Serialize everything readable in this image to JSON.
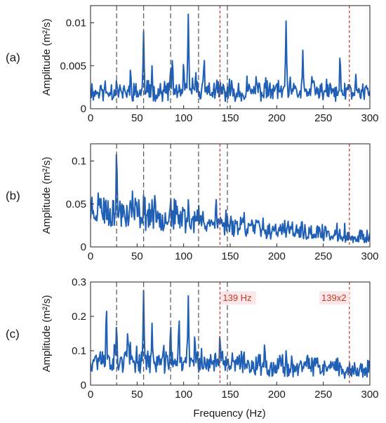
{
  "figure": {
    "xlabel": "Frequency (Hz)",
    "series_color": "#1f5fb5",
    "guide_color": "#555555",
    "harmonic_color": "#c0392b"
  },
  "chart_data": [
    {
      "type": "line",
      "panel_label": "(a)",
      "ylabel": "Amplitude (m²/s)",
      "xlim": [
        0,
        300
      ],
      "ylim": [
        0,
        0.012
      ],
      "xticks": [
        0,
        50,
        100,
        150,
        200,
        250,
        300
      ],
      "yticks": [
        0,
        0.005,
        0.01
      ],
      "ytick_labels": [
        "0",
        "0.005",
        "0.01"
      ],
      "grid": false,
      "dashed_gray_lines_hz": [
        28,
        57,
        86,
        116,
        147
      ],
      "dashed_red_lines_hz": [
        139,
        278
      ],
      "baseline": 0.0015,
      "noise": 0.0016,
      "seed": 11,
      "peaks": [
        [
          28,
          0.0035
        ],
        [
          43,
          0.0048
        ],
        [
          57,
          0.009
        ],
        [
          66,
          0.005
        ],
        [
          86,
          0.005
        ],
        [
          88,
          0.006
        ],
        [
          100,
          0.0055
        ],
        [
          105,
          0.011
        ],
        [
          113,
          0.0045
        ],
        [
          122,
          0.006
        ],
        [
          139,
          0.0025
        ],
        [
          168,
          0.0038
        ],
        [
          178,
          0.004
        ],
        [
          210,
          0.0102
        ],
        [
          228,
          0.0068
        ],
        [
          238,
          0.004
        ],
        [
          268,
          0.0063
        ],
        [
          278,
          0.003
        ],
        [
          285,
          0.004
        ]
      ]
    },
    {
      "type": "line",
      "panel_label": "(b)",
      "ylabel": "Amplitude (m²/s)",
      "xlim": [
        0,
        300
      ],
      "ylim": [
        0,
        0.12
      ],
      "xticks": [
        0,
        50,
        100,
        150,
        200,
        250,
        300
      ],
      "yticks": [
        0,
        0.05,
        0.1
      ],
      "ytick_labels": [
        "0",
        "0.05",
        "0.1"
      ],
      "grid": false,
      "dashed_gray_lines_hz": [
        28,
        57,
        86,
        116,
        147
      ],
      "dashed_red_lines_hz": [
        139,
        278
      ],
      "baseline_points": [
        [
          0,
          0.04
        ],
        [
          100,
          0.028
        ],
        [
          150,
          0.022
        ],
        [
          200,
          0.014
        ],
        [
          250,
          0.01
        ],
        [
          300,
          0.006
        ]
      ],
      "noise": 0.016,
      "seed": 23,
      "peaks": [
        [
          10,
          0.06
        ],
        [
          16,
          0.055
        ],
        [
          28,
          0.115
        ],
        [
          45,
          0.065
        ],
        [
          57,
          0.06
        ],
        [
          66,
          0.055
        ],
        [
          86,
          0.06
        ],
        [
          100,
          0.045
        ],
        [
          105,
          0.055
        ],
        [
          116,
          0.04
        ],
        [
          135,
          0.055
        ],
        [
          147,
          0.035
        ],
        [
          165,
          0.04
        ],
        [
          212,
          0.032
        ],
        [
          230,
          0.022
        ],
        [
          255,
          0.015
        ]
      ]
    },
    {
      "type": "line",
      "panel_label": "(c)",
      "ylabel": "Amplitude (m²/s)",
      "xlim": [
        0,
        300
      ],
      "ylim": [
        0,
        0.3
      ],
      "xticks": [
        0,
        50,
        100,
        150,
        200,
        250,
        300
      ],
      "yticks": [
        0,
        0.1,
        0.2,
        0.3
      ],
      "ytick_labels": [
        "0",
        "0.1",
        "0.2",
        "0.3"
      ],
      "grid": false,
      "dashed_gray_lines_hz": [
        28,
        57,
        86,
        116,
        147
      ],
      "dashed_red_lines_hz": [
        139,
        278
      ],
      "annotations": [
        {
          "text": "139 Hz",
          "x": 142,
          "y": 0.245
        },
        {
          "text": "139x2",
          "x": 248,
          "y": 0.245
        }
      ],
      "baseline_points": [
        [
          0,
          0.065
        ],
        [
          150,
          0.05
        ],
        [
          300,
          0.03
        ]
      ],
      "noise": 0.04,
      "seed": 37,
      "peaks": [
        [
          17,
          0.23
        ],
        [
          28,
          0.18
        ],
        [
          40,
          0.16
        ],
        [
          57,
          0.275
        ],
        [
          66,
          0.18
        ],
        [
          86,
          0.18
        ],
        [
          95,
          0.2
        ],
        [
          105,
          0.26
        ],
        [
          112,
          0.15
        ],
        [
          139,
          0.15
        ],
        [
          187,
          0.125
        ],
        [
          210,
          0.1
        ],
        [
          238,
          0.085
        ],
        [
          268,
          0.07
        ]
      ]
    }
  ]
}
